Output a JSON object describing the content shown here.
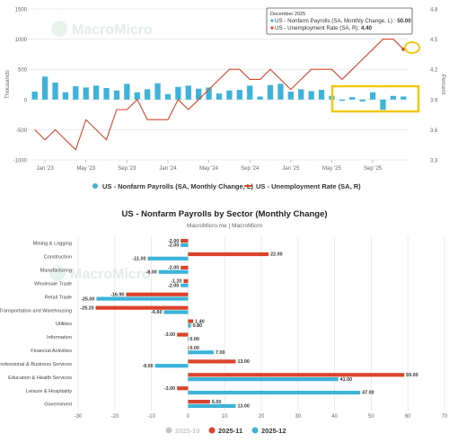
{
  "colors": {
    "payroll": "#3eb3d9",
    "unemployment": "#d9442b",
    "grid": "#e6e6e6",
    "highlight": "#f2c811",
    "axis_text": "#666666",
    "s2025_10": "#c8c8c8",
    "s2025_11": "#d9442b",
    "s2025_12": "#3eb3d9"
  },
  "watermark": "MacroMicro",
  "chart_data": [
    {
      "type": "bar+line",
      "ylabel": "Thousands",
      "y2label": "Percent",
      "ylim": [
        -1000,
        1500
      ],
      "y2lim": [
        3.3,
        4.8
      ],
      "yticks": [
        "1500",
        "1000",
        "500",
        "0",
        "-500",
        "-1000"
      ],
      "y2ticks": [
        "4.8",
        "4.5",
        "4.2",
        "3.9",
        "3.6",
        "3.3"
      ],
      "xticks": [
        "Jan '23",
        "May '23",
        "Sep '23",
        "Jan '24",
        "May '24",
        "Sep '24",
        "Jan '25",
        "May '25",
        "Sep '25"
      ],
      "x": [
        "2022-12",
        "2023-01",
        "2023-02",
        "2023-03",
        "2023-04",
        "2023-05",
        "2023-06",
        "2023-07",
        "2023-08",
        "2023-09",
        "2023-10",
        "2023-11",
        "2023-12",
        "2024-01",
        "2024-02",
        "2024-03",
        "2024-04",
        "2024-05",
        "2024-06",
        "2024-07",
        "2024-08",
        "2024-09",
        "2024-10",
        "2024-11",
        "2024-12",
        "2025-01",
        "2025-02",
        "2025-03",
        "2025-04",
        "2025-05",
        "2025-06",
        "2025-07",
        "2025-08",
        "2025-09",
        "2025-10",
        "2025-11",
        "2025-12"
      ],
      "series": [
        {
          "name": "US - Nonfarm Payrolls (SA, Monthly Change, L)",
          "kind": "bar",
          "values": [
            130,
            380,
            280,
            120,
            220,
            200,
            230,
            190,
            150,
            260,
            120,
            170,
            270,
            90,
            210,
            230,
            180,
            200,
            100,
            150,
            160,
            230,
            50,
            240,
            260,
            130,
            170,
            140,
            160,
            60,
            -20,
            40,
            -30,
            120,
            -170,
            60,
            50
          ]
        },
        {
          "name": "US - Unemployment Rate (SA, R)",
          "kind": "line",
          "values": [
            3.6,
            3.5,
            3.6,
            3.5,
            3.4,
            3.7,
            3.6,
            3.5,
            3.8,
            3.8,
            3.9,
            3.7,
            3.7,
            3.7,
            3.9,
            3.8,
            3.9,
            4.0,
            4.1,
            4.2,
            4.2,
            4.1,
            4.1,
            4.2,
            4.1,
            4.0,
            4.1,
            4.2,
            4.2,
            4.2,
            4.1,
            4.2,
            4.3,
            4.4,
            4.5,
            4.5,
            4.4
          ]
        }
      ],
      "tooltip": {
        "title": "December 2025",
        "rows": [
          {
            "label": "US - Nonfarm Payrolls (SA, Monthly Change, L) : ",
            "value": "50.00"
          },
          {
            "label": "US - Unemployment Rate (SA, R): ",
            "value": "4.40"
          }
        ]
      },
      "legend": [
        "US - Nonfarm Payrolls (SA, Monthly Change, L)",
        "US - Unemployment Rate (SA, R)"
      ]
    },
    {
      "type": "bar",
      "orientation": "horizontal",
      "title": "US - Nonfarm Payrolls by Sector (Monthly Change)",
      "subtitle": "MacroMicro.me | MacroMicro",
      "xlim": [
        -30,
        70
      ],
      "xticks": [
        "-30",
        "-20",
        "-10",
        "0",
        "10",
        "20",
        "30",
        "40",
        "50",
        "60",
        "70"
      ],
      "categories": [
        "Mining & Logging",
        "Construction",
        "Manufacturing",
        "Wholesale Trade",
        "Retail Trade",
        "Transportation and Warehousing",
        "Utilities",
        "Information",
        "Financial Activities",
        "Professional & Business Services",
        "Education & Health Services",
        "Leisure & Hospitality",
        "Government"
      ],
      "series": [
        {
          "name": "2025-10",
          "values": [
            null,
            null,
            null,
            null,
            null,
            null,
            null,
            null,
            null,
            null,
            null,
            null,
            null
          ]
        },
        {
          "name": "2025-11",
          "values": [
            -2.0,
            22.0,
            -2.0,
            -1.2,
            -16.9,
            -25.2,
            1.4,
            -3.0,
            0.0,
            13.0,
            59.0,
            -3.0,
            6.0
          ],
          "labels": [
            "-2.00",
            "22.00",
            "-2.00",
            "-1.20",
            "-16.90",
            "-25.20",
            "1.40",
            "-3.00",
            "0.00",
            "13.00",
            "59.00",
            "-3.00",
            "6.00"
          ]
        },
        {
          "name": "2025-12",
          "values": [
            -2.0,
            -11.0,
            -8.0,
            -2.0,
            -25.0,
            -6.6,
            0.8,
            0.0,
            7.0,
            -9.0,
            41.0,
            47.0,
            13.0
          ],
          "labels": [
            "-2.00",
            "-11.00",
            "-8.00",
            "-2.00",
            "-25.00",
            "-6.60",
            "0.80",
            "0.00",
            "7.00",
            "-9.00",
            "41.00",
            "47.00",
            "13.00"
          ]
        }
      ],
      "legend": [
        "2025-10",
        "2025-11",
        "2025-12"
      ]
    }
  ]
}
